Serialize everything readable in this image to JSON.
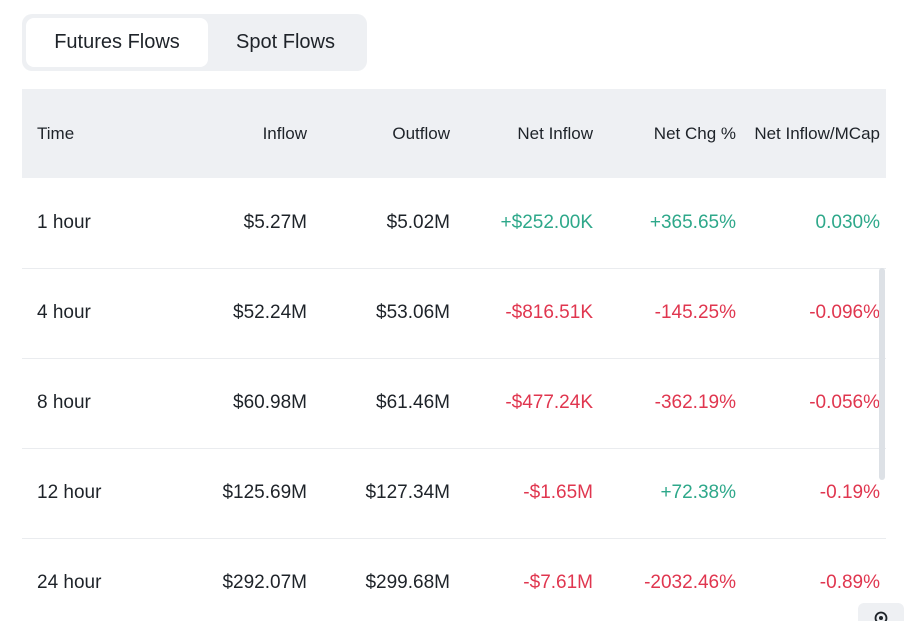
{
  "tabs": [
    {
      "label": "Futures Flows",
      "active": true
    },
    {
      "label": "Spot Flows",
      "active": false
    }
  ],
  "table": {
    "headers": [
      "Time",
      "Inflow",
      "Outflow",
      "Net Inflow",
      "Net Chg %",
      "Net Inflow/MCap"
    ],
    "rows": [
      {
        "time": "1 hour",
        "inflow": "$5.27M",
        "outflow": "$5.02M",
        "net_inflow": "+$252.00K",
        "net_chg": "+365.65%",
        "net_mcap": "0.030%",
        "net_inflow_sign": "pos",
        "net_chg_sign": "pos",
        "net_mcap_sign": "pos"
      },
      {
        "time": "4 hour",
        "inflow": "$52.24M",
        "outflow": "$53.06M",
        "net_inflow": "-$816.51K",
        "net_chg": "-145.25%",
        "net_mcap": "-0.096%",
        "net_inflow_sign": "neg",
        "net_chg_sign": "neg",
        "net_mcap_sign": "neg"
      },
      {
        "time": "8 hour",
        "inflow": "$60.98M",
        "outflow": "$61.46M",
        "net_inflow": "-$477.24K",
        "net_chg": "-362.19%",
        "net_mcap": "-0.056%",
        "net_inflow_sign": "neg",
        "net_chg_sign": "neg",
        "net_mcap_sign": "neg"
      },
      {
        "time": "12 hour",
        "inflow": "$125.69M",
        "outflow": "$127.34M",
        "net_inflow": "-$1.65M",
        "net_chg": "+72.38%",
        "net_mcap": "-0.19%",
        "net_inflow_sign": "neg",
        "net_chg_sign": "pos",
        "net_mcap_sign": "neg"
      },
      {
        "time": "24 hour",
        "inflow": "$292.07M",
        "outflow": "$299.68M",
        "net_inflow": "-$7.61M",
        "net_chg": "-2032.46%",
        "net_mcap": "-0.89%",
        "net_inflow_sign": "neg",
        "net_chg_sign": "neg",
        "net_mcap_sign": "neg"
      }
    ]
  },
  "colors": {
    "positive": "#2ea88a",
    "negative": "#e0364f",
    "header_bg": "#eef0f3"
  },
  "icons": {
    "corner": "gear-icon"
  }
}
